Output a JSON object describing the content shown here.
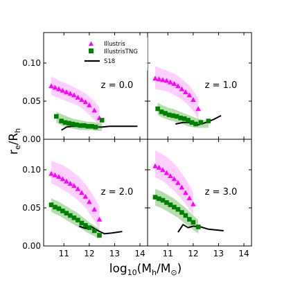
{
  "chart_data": {
    "type": "scatter",
    "layout": "2x2 panels, shared axes",
    "xlabel_base": "log",
    "xlabel_sub": "10",
    "xlabel_paren_open": "(M",
    "xlabel_h": "h",
    "xlabel_slash": "/M",
    "xlabel_sun": "⊙",
    "xlabel_close": ")",
    "ylabel_base": "r",
    "ylabel_sub_e": "e",
    "ylabel_slash": "/R",
    "ylabel_sub_h": "h",
    "xlim": [
      10.2,
      14.3
    ],
    "ylim": [
      0.0,
      0.14
    ],
    "xticks": [
      11,
      12,
      13,
      14
    ],
    "yticks": [
      0.0,
      0.05,
      0.1
    ],
    "xtick_labels": [
      "11",
      "12",
      "13",
      "14"
    ],
    "ytick_labels": [
      "0.00",
      "0.05",
      "0.10"
    ],
    "legend": {
      "placement": "top-left panel, top-center",
      "entries": [
        {
          "label": "Illustris",
          "marker": "triangle",
          "color": "#ff00ff"
        },
        {
          "label": "IllustrisTNG",
          "marker": "square",
          "color": "#008000"
        },
        {
          "label": "S18",
          "marker": "line",
          "color": "#000000"
        }
      ]
    },
    "colors": {
      "illustris": "#ff00ff",
      "illustris_band": "#ffc8ff",
      "tng": "#008000",
      "tng_band": "#a8d8a0",
      "s18": "#000000"
    },
    "panels": [
      {
        "label": "z = 0.0",
        "illustris": {
          "x": [
            10.5,
            10.65,
            10.8,
            10.95,
            11.1,
            11.25,
            11.4,
            11.55,
            11.7,
            11.85,
            12.0,
            12.2,
            12.4
          ],
          "y": [
            0.07,
            0.068,
            0.066,
            0.064,
            0.062,
            0.06,
            0.058,
            0.055,
            0.052,
            0.049,
            0.045,
            0.038,
            0.028
          ],
          "band_upper": [
            0.082,
            0.08,
            0.077,
            0.075,
            0.073,
            0.071,
            0.068,
            0.066,
            0.063,
            0.06,
            0.056,
            0.05,
            0.042
          ],
          "band_lower": [
            0.058,
            0.056,
            0.054,
            0.052,
            0.05,
            0.048,
            0.046,
            0.044,
            0.041,
            0.037,
            0.032,
            0.025,
            0.017
          ]
        },
        "tng": {
          "x": [
            10.7,
            10.9,
            11.05,
            11.2,
            11.35,
            11.5,
            11.65,
            11.8,
            11.95,
            12.1,
            12.25,
            12.5
          ],
          "y": [
            0.03,
            0.024,
            0.022,
            0.021,
            0.02,
            0.019,
            0.018,
            0.018,
            0.017,
            0.017,
            0.016,
            0.025
          ],
          "band_upper": [
            0.036,
            0.033,
            0.031,
            0.029,
            0.027,
            0.026,
            0.025,
            0.024,
            0.023,
            0.023,
            0.022,
            0.021
          ],
          "band_lower": [
            0.022,
            0.018,
            0.016,
            0.015,
            0.014,
            0.013,
            0.012,
            0.012,
            0.012,
            0.012,
            0.011,
            0.011
          ]
        },
        "s18": {
          "x": [
            10.9,
            11.1,
            11.3,
            11.6,
            11.9,
            12.2,
            12.5,
            12.8,
            13.1,
            13.5,
            13.9
          ],
          "y": [
            0.012,
            0.016,
            0.017,
            0.017,
            0.016,
            0.016,
            0.016,
            0.017,
            0.017,
            0.017,
            0.017
          ]
        }
      },
      {
        "label": "z = 1.0",
        "illustris": {
          "x": [
            10.5,
            10.65,
            10.8,
            10.95,
            11.1,
            11.25,
            11.4,
            11.55,
            11.7,
            11.85,
            12.0,
            12.2
          ],
          "y": [
            0.08,
            0.079,
            0.078,
            0.077,
            0.075,
            0.073,
            0.07,
            0.066,
            0.062,
            0.058,
            0.052,
            0.04
          ],
          "band_upper": [
            0.096,
            0.094,
            0.092,
            0.09,
            0.088,
            0.086,
            0.083,
            0.079,
            0.075,
            0.07,
            0.064,
            0.054
          ],
          "band_lower": [
            0.066,
            0.065,
            0.064,
            0.063,
            0.061,
            0.058,
            0.055,
            0.052,
            0.048,
            0.043,
            0.037,
            0.026
          ]
        },
        "tng": {
          "x": [
            10.6,
            10.75,
            10.9,
            11.05,
            11.2,
            11.35,
            11.5,
            11.65,
            11.8,
            11.95,
            12.1,
            12.3,
            12.6
          ],
          "y": [
            0.04,
            0.036,
            0.034,
            0.032,
            0.031,
            0.03,
            0.028,
            0.027,
            0.025,
            0.022,
            0.02,
            0.022,
            0.024
          ],
          "band_upper": [
            0.048,
            0.045,
            0.043,
            0.041,
            0.04,
            0.038,
            0.036,
            0.034,
            0.032,
            0.03,
            0.028,
            0.026,
            0.024
          ],
          "band_lower": [
            0.032,
            0.029,
            0.027,
            0.025,
            0.024,
            0.022,
            0.021,
            0.019,
            0.017,
            0.016,
            0.015,
            0.015,
            0.015
          ]
        },
        "s18": {
          "x": [
            11.3,
            11.6,
            11.9,
            12.2,
            12.5,
            12.8,
            13.1
          ],
          "y": [
            0.02,
            0.022,
            0.022,
            0.019,
            0.022,
            0.026,
            0.031
          ]
        }
      },
      {
        "label": "z = 2.0",
        "illustris": {
          "x": [
            10.5,
            10.65,
            10.8,
            10.95,
            11.1,
            11.25,
            11.4,
            11.55,
            11.7,
            11.85,
            12.0,
            12.2,
            12.4
          ],
          "y": [
            0.095,
            0.093,
            0.091,
            0.088,
            0.085,
            0.082,
            0.079,
            0.075,
            0.07,
            0.065,
            0.058,
            0.048,
            0.035
          ],
          "band_upper": [
            0.112,
            0.11,
            0.108,
            0.106,
            0.103,
            0.1,
            0.096,
            0.092,
            0.087,
            0.081,
            0.074,
            0.064,
            0.052
          ],
          "band_lower": [
            0.082,
            0.08,
            0.077,
            0.074,
            0.071,
            0.068,
            0.064,
            0.06,
            0.055,
            0.05,
            0.043,
            0.033,
            0.02
          ]
        },
        "tng": {
          "x": [
            10.5,
            10.65,
            10.8,
            10.95,
            11.1,
            11.25,
            11.4,
            11.55,
            11.7,
            11.85,
            12.0,
            12.2,
            12.4
          ],
          "y": [
            0.054,
            0.051,
            0.049,
            0.046,
            0.043,
            0.04,
            0.037,
            0.034,
            0.03,
            0.027,
            0.024,
            0.02,
            0.014
          ],
          "band_upper": [
            0.063,
            0.06,
            0.058,
            0.055,
            0.052,
            0.049,
            0.046,
            0.043,
            0.039,
            0.035,
            0.031,
            0.027,
            0.022
          ],
          "band_lower": [
            0.045,
            0.042,
            0.04,
            0.037,
            0.034,
            0.031,
            0.028,
            0.025,
            0.022,
            0.019,
            0.016,
            0.013,
            0.009
          ]
        },
        "s18": {
          "x": [
            11.6,
            11.85,
            12.1,
            12.35,
            12.6,
            12.9,
            13.3
          ],
          "y": [
            0.026,
            0.023,
            0.025,
            0.02,
            0.016,
            0.017,
            0.019
          ]
        }
      },
      {
        "label": "z = 3.0",
        "illustris": {
          "x": [
            10.5,
            10.65,
            10.8,
            10.95,
            11.1,
            11.25,
            11.4,
            11.55,
            11.7,
            11.85,
            12.0
          ],
          "y": [
            0.105,
            0.103,
            0.1,
            0.096,
            0.092,
            0.088,
            0.083,
            0.077,
            0.07,
            0.063,
            0.055
          ],
          "band_upper": [
            0.125,
            0.123,
            0.12,
            0.117,
            0.113,
            0.108,
            0.102,
            0.095,
            0.088,
            0.08,
            0.07
          ],
          "band_lower": [
            0.09,
            0.088,
            0.085,
            0.081,
            0.077,
            0.072,
            0.067,
            0.061,
            0.055,
            0.048,
            0.04
          ]
        },
        "tng": {
          "x": [
            10.5,
            10.65,
            10.8,
            10.95,
            11.1,
            11.25,
            11.4,
            11.55,
            11.7,
            11.85,
            12.0,
            12.2
          ],
          "y": [
            0.064,
            0.062,
            0.06,
            0.057,
            0.054,
            0.051,
            0.048,
            0.044,
            0.04,
            0.035,
            0.031,
            0.025
          ],
          "band_upper": [
            0.075,
            0.073,
            0.071,
            0.068,
            0.065,
            0.062,
            0.058,
            0.054,
            0.05,
            0.045,
            0.04,
            0.034
          ],
          "band_lower": [
            0.053,
            0.051,
            0.049,
            0.046,
            0.043,
            0.04,
            0.037,
            0.033,
            0.029,
            0.025,
            0.021,
            0.016
          ]
        },
        "s18": {
          "x": [
            11.4,
            11.6,
            11.8,
            12.0,
            12.3,
            12.6,
            12.9,
            13.2
          ],
          "y": [
            0.018,
            0.028,
            0.024,
            0.026,
            0.025,
            0.022,
            0.021,
            0.02
          ]
        }
      }
    ]
  }
}
